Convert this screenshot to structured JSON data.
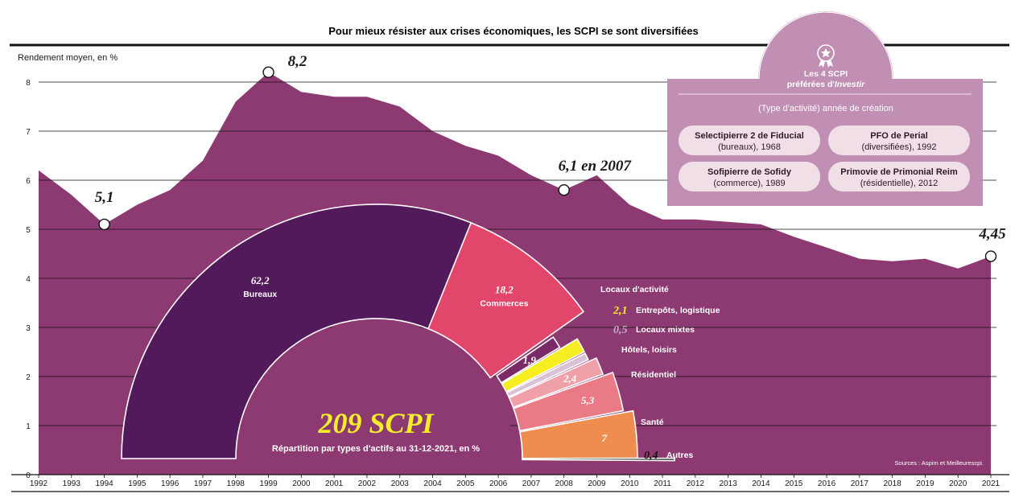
{
  "title": "Pour mieux résister aux crises économiques, les SCPI se sont diversifiées",
  "colors": {
    "area": "#8e3a72",
    "bureaux": "#521a5a",
    "commerces": "#e2466a",
    "locaux_activite": "#7a2a66",
    "entrepots": "#f7ee22",
    "locaux_mixtes": "#d9c2d8",
    "hotels": "#f0a0a8",
    "residentiel": "#ea7a86",
    "sante": "#ef8c50",
    "autres_group": "#e75a24",
    "autres": "#111111",
    "box": "#c28fb4",
    "card": "#f1dfe8"
  },
  "chart_data": [
    {
      "type": "area",
      "ylabel": "Rendement moyen, en %",
      "ylim": [
        0,
        8
      ],
      "yticks": [
        0,
        1,
        2,
        3,
        4,
        5,
        6,
        7,
        8
      ],
      "grid": true,
      "x": [
        1992,
        1993,
        1994,
        1995,
        1996,
        1997,
        1998,
        1999,
        2000,
        2001,
        2002,
        2003,
        2004,
        2005,
        2006,
        2007,
        2008,
        2009,
        2010,
        2011,
        2012,
        2013,
        2014,
        2015,
        2016,
        2017,
        2018,
        2019,
        2020,
        2021
      ],
      "series": [
        {
          "values": [
            6.2,
            5.7,
            5.1,
            5.5,
            5.8,
            6.4,
            7.6,
            8.2,
            7.8,
            7.7,
            7.7,
            7.5,
            7.0,
            6.7,
            6.5,
            6.1,
            5.8,
            6.1,
            5.5,
            5.2,
            5.2,
            5.15,
            5.1,
            4.85,
            4.63,
            4.4,
            4.35,
            4.4,
            4.2,
            4.45
          ]
        }
      ],
      "annotations": [
        {
          "x": 1994,
          "y": 5.1,
          "text": "5,1"
        },
        {
          "x": 1999,
          "y": 8.2,
          "text": "8,2"
        },
        {
          "x": 2008,
          "y": 5.8,
          "text": "6,1 en 2007"
        },
        {
          "x": 2021,
          "y": 4.45,
          "text": "4,45"
        }
      ]
    },
    {
      "type": "pie",
      "variant": "semicircle",
      "title": "209 SCPI",
      "subtitle": "Répartition par types d'actifs au 31-12-2021, en %",
      "slices": [
        {
          "label": "Bureaux",
          "value": 62.2,
          "value_text": "62,2"
        },
        {
          "label": "Commerces",
          "value": 18.2,
          "value_text": "18,2"
        },
        {
          "label": "Locaux d'activité",
          "value": 1.9,
          "value_text": "1,9"
        },
        {
          "label": "Entrepôts, logistique",
          "value": 2.1,
          "value_text": "2,1"
        },
        {
          "label": "Locaux mixtes",
          "value": 0.5,
          "value_text": "0,5"
        },
        {
          "label": "Hôtels, loisirs",
          "value": 2.4,
          "value_text": "2,4"
        },
        {
          "label": "Résidentiel",
          "value": 5.3,
          "value_text": "5,3"
        },
        {
          "label": "Santé",
          "value": 7,
          "value_text": "7"
        },
        {
          "label": "Autres",
          "value": 0.4,
          "value_text": "0,4"
        }
      ]
    }
  ],
  "favorites": {
    "heading_line1": "Les 4 SCPI",
    "heading_line2": "préférées d'",
    "heading_brand": "Investir",
    "subheading": "(Type d'activité) année de création",
    "cards": [
      {
        "name": "Selectipierre 2 de Fiducial",
        "info": "(bureaux), 1968"
      },
      {
        "name": "PFO de Perial",
        "info": "(diversifiées), 1992"
      },
      {
        "name": "Sofipierre de Sofidy",
        "info": "(commerce), 1989"
      },
      {
        "name": "Primovie de Primonial Reim",
        "info": "(résidentielle), 2012"
      }
    ]
  },
  "source": "Sources : Aspim et Meilleurescpi."
}
